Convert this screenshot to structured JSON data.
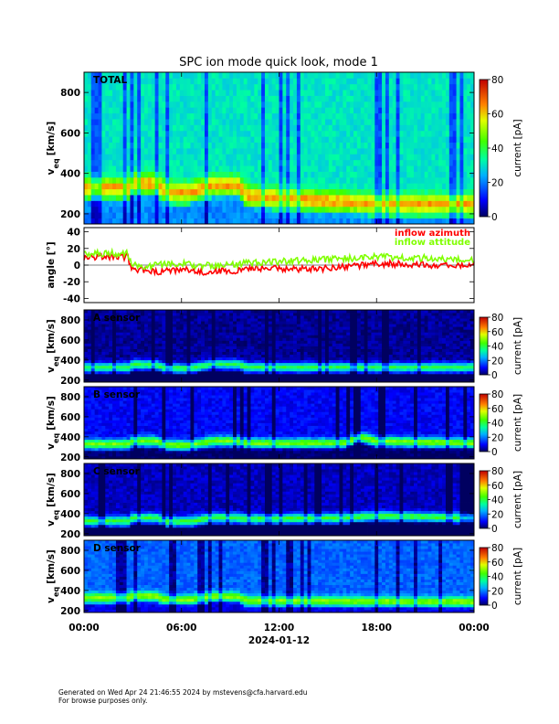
{
  "chart_data": {
    "type": "heatmap",
    "title": "SPC ion mode quick look, mode 1",
    "x": {
      "ticks": [
        "00:00",
        "06:00",
        "12:00",
        "18:00",
        "00:00"
      ],
      "hours": [
        0,
        6,
        12,
        18,
        24
      ],
      "date_label": "2024-01-12",
      "range_hours": [
        0,
        24
      ]
    },
    "panels": [
      {
        "kind": "heatmap",
        "label": "TOTAL",
        "ylabel": "v",
        "ylabel_sub": "eq",
        "yunit": "[km/s]",
        "ylim": [
          150,
          900
        ],
        "yticks": [
          200,
          400,
          600,
          800
        ],
        "colorbar": {
          "label": "current [pA]",
          "range": [
            0,
            80
          ],
          "ticks": [
            0,
            20,
            40,
            60,
            80
          ]
        },
        "peak_velocity_kms": [
          [
            0,
            330
          ],
          [
            2.8,
            330
          ],
          [
            3,
            355
          ],
          [
            4.5,
            350
          ],
          [
            5,
            310
          ],
          [
            6.5,
            310
          ],
          [
            8,
            345
          ],
          [
            9.5,
            340
          ],
          [
            10,
            290
          ],
          [
            14,
            270
          ],
          [
            18,
            250
          ],
          [
            24,
            250
          ]
        ]
      },
      {
        "kind": "line",
        "ylabel": "angle [°]",
        "ylim": [
          -45,
          45
        ],
        "yticks": [
          -40,
          -20,
          0,
          20,
          40
        ],
        "series": [
          {
            "name": "inflow azimuth",
            "color": "#ff0000",
            "points": [
              [
                0,
                10
              ],
              [
                2.7,
                10
              ],
              [
                2.9,
                -5
              ],
              [
                4,
                -7
              ],
              [
                4.5,
                -9
              ],
              [
                6,
                -5
              ],
              [
                7,
                -9
              ],
              [
                8.5,
                -6
              ],
              [
                9.5,
                -7
              ],
              [
                10,
                -3
              ],
              [
                12,
                -4
              ],
              [
                14,
                -5
              ],
              [
                16,
                -2
              ],
              [
                18,
                2
              ],
              [
                20,
                1
              ],
              [
                22,
                0
              ],
              [
                24,
                0
              ]
            ]
          },
          {
            "name": "inflow attitude",
            "color": "#80ff00",
            "points": [
              [
                0,
                14
              ],
              [
                2.7,
                14
              ],
              [
                2.9,
                0
              ],
              [
                4,
                -2
              ],
              [
                4.5,
                0
              ],
              [
                6,
                2
              ],
              [
                7,
                -1
              ],
              [
                8.5,
                0
              ],
              [
                9.5,
                1
              ],
              [
                10,
                3
              ],
              [
                12,
                4
              ],
              [
                14,
                6
              ],
              [
                16,
                8
              ],
              [
                18,
                10
              ],
              [
                20,
                9
              ],
              [
                22,
                8
              ],
              [
                24,
                7
              ]
            ]
          }
        ]
      },
      {
        "kind": "heatmap",
        "label": "A sensor",
        "ylabel": "v",
        "ylabel_sub": "eq",
        "yunit": "[km/s]",
        "ylim": [
          180,
          900
        ],
        "yticks": [
          200,
          400,
          600,
          800
        ],
        "colorbar": {
          "label": "current [pA]",
          "range": [
            0,
            80
          ],
          "ticks": [
            0,
            20,
            40,
            60,
            80
          ]
        },
        "peak_velocity_kms": [
          [
            0,
            330
          ],
          [
            2.8,
            330
          ],
          [
            3,
            360
          ],
          [
            4.5,
            355
          ],
          [
            5,
            320
          ],
          [
            6.5,
            320
          ],
          [
            8,
            365
          ],
          [
            9.5,
            360
          ],
          [
            10,
            330
          ],
          [
            24,
            330
          ]
        ]
      },
      {
        "kind": "heatmap",
        "label": "B sensor",
        "ylabel": "v",
        "ylabel_sub": "eq",
        "yunit": "[km/s]",
        "ylim": [
          180,
          900
        ],
        "yticks": [
          200,
          400,
          600,
          800
        ],
        "colorbar": {
          "label": "current [pA]",
          "range": [
            0,
            80
          ],
          "ticks": [
            0,
            20,
            40,
            60,
            80
          ]
        },
        "peak_velocity_kms": [
          [
            0,
            330
          ],
          [
            2.8,
            330
          ],
          [
            3,
            365
          ],
          [
            4.5,
            360
          ],
          [
            5,
            320
          ],
          [
            6.5,
            320
          ],
          [
            8,
            365
          ],
          [
            9.5,
            360
          ],
          [
            10,
            340
          ],
          [
            16,
            340
          ],
          [
            17,
            400
          ],
          [
            18,
            360
          ],
          [
            24,
            340
          ]
        ]
      },
      {
        "kind": "heatmap",
        "label": "C sensor",
        "ylabel": "v",
        "ylabel_sub": "eq",
        "yunit": "[km/s]",
        "ylim": [
          180,
          900
        ],
        "yticks": [
          200,
          400,
          600,
          800
        ],
        "colorbar": {
          "label": "current [pA]",
          "range": [
            0,
            80
          ],
          "ticks": [
            0,
            20,
            40,
            60,
            80
          ]
        },
        "peak_velocity_kms": [
          [
            0,
            330
          ],
          [
            2.8,
            330
          ],
          [
            3,
            365
          ],
          [
            4.5,
            360
          ],
          [
            5,
            325
          ],
          [
            6.5,
            325
          ],
          [
            8,
            365
          ],
          [
            9.5,
            360
          ],
          [
            10,
            350
          ],
          [
            16,
            360
          ],
          [
            18,
            380
          ],
          [
            24,
            360
          ]
        ]
      },
      {
        "kind": "heatmap",
        "label": "D sensor",
        "ylabel": "v",
        "ylabel_sub": "eq",
        "yunit": "[km/s]",
        "ylim": [
          180,
          900
        ],
        "yticks": [
          200,
          400,
          600,
          800
        ],
        "colorbar": {
          "label": "current [pA]",
          "range": [
            0,
            80
          ],
          "ticks": [
            0,
            20,
            40,
            60,
            80
          ]
        },
        "peak_velocity_kms": [
          [
            0,
            330
          ],
          [
            2.8,
            330
          ],
          [
            3,
            350
          ],
          [
            4.5,
            345
          ],
          [
            5,
            310
          ],
          [
            6.5,
            310
          ],
          [
            8,
            345
          ],
          [
            9.5,
            340
          ],
          [
            10,
            300
          ],
          [
            24,
            290
          ]
        ]
      }
    ]
  },
  "footer": {
    "line1": "Generated on Wed Apr 24 21:46:55 2024 by mstevens@cfa.harvard.edu",
    "line2": "For browse purposes only."
  }
}
